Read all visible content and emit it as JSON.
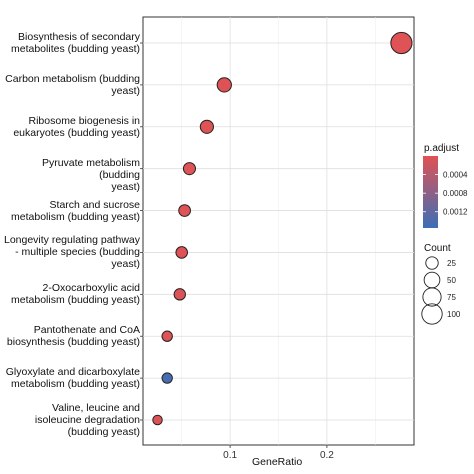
{
  "chart_data": {
    "type": "scatter",
    "xlabel": "GeneRatio",
    "ylabel": "",
    "xlim": [
      0.01,
      0.29
    ],
    "xticks": [
      0.1,
      0.2
    ],
    "xtick_labels": [
      "0.1",
      "0.2"
    ],
    "grid": true,
    "legend_position": "right",
    "categories": [
      "Biosynthesis of secondary\nmetabolites (budding yeast)",
      "Carbon metabolism (budding\nyeast)",
      "Ribosome biogenesis in\neukaryotes (budding yeast)",
      "Pyruvate metabolism (budding\nyeast)",
      "Starch and sucrose\nmetabolism (budding yeast)",
      "Longevity regulating pathway\n- multiple species (budding\nyeast)",
      "2-Oxocarboxylic acid\nmetabolism (budding yeast)",
      "Pantothenate and CoA\nbiosynthesis (budding yeast)",
      "Glyoxylate and dicarboxylate\nmetabolism (budding yeast)",
      "Valine, leucine and\nisoleucine degradation\n(budding yeast)"
    ],
    "points": [
      {
        "gene_ratio": 0.277,
        "count": 110,
        "p_adjust": 1e-05
      },
      {
        "gene_ratio": 0.094,
        "count": 38,
        "p_adjust": 2e-05
      },
      {
        "gene_ratio": 0.076,
        "count": 30,
        "p_adjust": 3e-05
      },
      {
        "gene_ratio": 0.058,
        "count": 23,
        "p_adjust": 3e-05
      },
      {
        "gene_ratio": 0.053,
        "count": 21,
        "p_adjust": 3e-05
      },
      {
        "gene_ratio": 0.05,
        "count": 20,
        "p_adjust": 3e-05
      },
      {
        "gene_ratio": 0.048,
        "count": 19,
        "p_adjust": 4e-05
      },
      {
        "gene_ratio": 0.035,
        "count": 14,
        "p_adjust": 3e-05
      },
      {
        "gene_ratio": 0.035,
        "count": 14,
        "p_adjust": 0.00145
      },
      {
        "gene_ratio": 0.025,
        "count": 10,
        "p_adjust": 4e-05
      }
    ],
    "color_legend": {
      "title": "p.adjust",
      "ticks": [
        0.0004,
        0.0008,
        0.0012
      ],
      "tick_labels": [
        "0.0004",
        "0.0008",
        "0.0012"
      ],
      "range": [
        0.0,
        0.00155
      ],
      "low_color": "#e05254",
      "high_color": "#3b6fb6"
    },
    "size_legend": {
      "title": "Count",
      "values": [
        25,
        50,
        75,
        100
      ],
      "labels": [
        "25",
        "50",
        "75",
        "100"
      ]
    }
  }
}
